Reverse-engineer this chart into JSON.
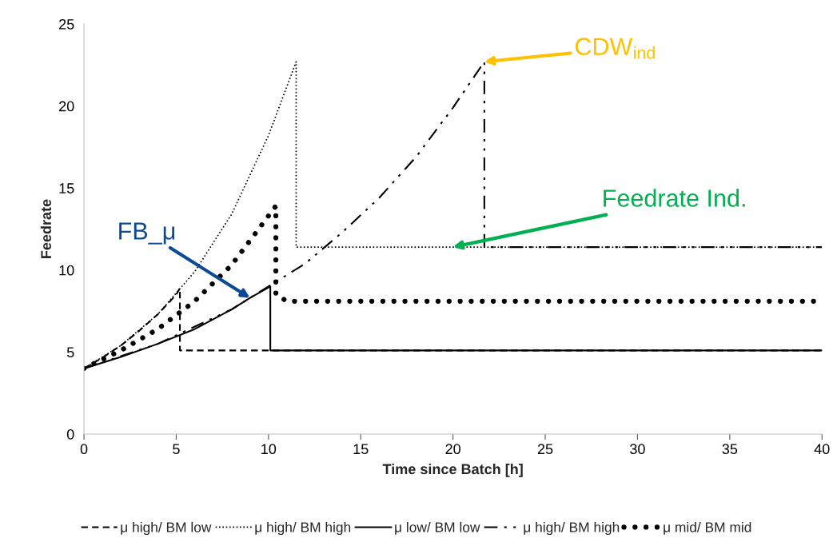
{
  "chart_data": {
    "type": "line",
    "xlabel": "Time since Batch [h]",
    "ylabel": "Feedrate",
    "xlim": [
      0,
      40
    ],
    "xticks": [
      0,
      5,
      10,
      15,
      20,
      25,
      30,
      35,
      40
    ],
    "ylim": [
      0,
      25
    ],
    "yticks": [
      0,
      5,
      10,
      15,
      20,
      25
    ],
    "grid": false,
    "legend": "bottom",
    "marker": "none",
    "series": [
      {
        "name": "μ high/ BM low",
        "color": "#000000",
        "line_style": "dashed",
        "x": [
          0,
          1,
          2,
          3,
          4,
          5,
          5.2,
          5.2,
          40
        ],
        "values": [
          4,
          4.65,
          5.4,
          6.3,
          7.3,
          8.5,
          8.9,
          5.1,
          5.1
        ]
      },
      {
        "name": "μ high/ BM high",
        "color": "#000000",
        "line_style": "dotted",
        "x": [
          0,
          2,
          4,
          6,
          8,
          10,
          11.5,
          11.5,
          20,
          40
        ],
        "values": [
          4,
          5.4,
          7.3,
          9.9,
          13.4,
          18.2,
          22.7,
          11.4,
          11.4,
          11.4
        ]
      },
      {
        "name": "μ low/ BM low",
        "color": "#000000",
        "line_style": "solid",
        "x": [
          0,
          2,
          4,
          6,
          8,
          9,
          10.1,
          10.1,
          40
        ],
        "values": [
          4,
          4.7,
          5.5,
          6.4,
          7.6,
          8.3,
          9.0,
          5.1,
          5.1
        ]
      },
      {
        "name": "μ high/ BM high",
        "color": "#000000",
        "line_style": "dashdotdot",
        "x": [
          0,
          4,
          8,
          12,
          14,
          16,
          18,
          20,
          21.7,
          21.7,
          40
        ],
        "values": [
          4,
          5.5,
          7.6,
          10.4,
          12.3,
          14.4,
          16.9,
          19.9,
          22.7,
          11.4,
          11.4
        ]
      },
      {
        "name": "μ mid/ BM mid",
        "color": "#000000",
        "line_style": "dots",
        "x": [
          0,
          2,
          4,
          6,
          8,
          10.4,
          10.4,
          11,
          40
        ],
        "values": [
          4,
          5.1,
          6.4,
          8.1,
          10.3,
          13.9,
          8.5,
          8.1,
          8.1
        ]
      }
    ],
    "annotations": [
      {
        "text": "CDW$_{ind}$",
        "x": 21.7,
        "y": 22.7
      },
      {
        "text": "Feedrate Ind.",
        "x": 20,
        "y": 11.4
      },
      {
        "text": "FB_μ",
        "x": 9,
        "y": 8.3
      }
    ]
  }
}
